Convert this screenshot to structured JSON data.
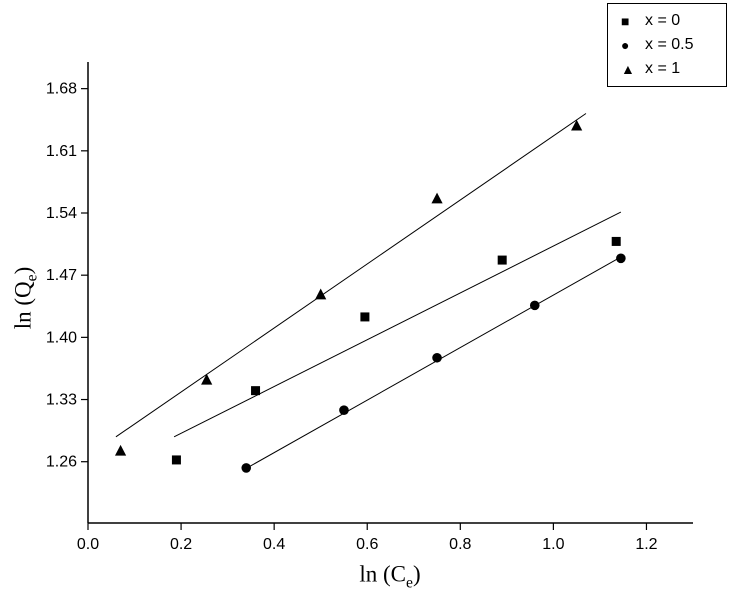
{
  "chart_data": {
    "type": "scatter",
    "title": "",
    "xlabel": {
      "pre": "ln (C",
      "sub": "e",
      "post": ")"
    },
    "ylabel": {
      "pre": "ln (Q",
      "sub": "e",
      "post": ")"
    },
    "xlim": [
      0.0,
      1.3
    ],
    "ylim": [
      1.191,
      1.71
    ],
    "xticks": [
      0.0,
      0.2,
      0.4,
      0.6,
      0.8,
      1.0,
      1.2
    ],
    "xtick_labels": [
      "0.0",
      "0.2",
      "0.4",
      "0.6",
      "0.8",
      "1.0",
      "1.2"
    ],
    "yticks": [
      1.26,
      1.33,
      1.4,
      1.47,
      1.54,
      1.61,
      1.68
    ],
    "ytick_labels": [
      "1.26",
      "1.33",
      "1.40",
      "1.47",
      "1.54",
      "1.61",
      "1.68"
    ],
    "grid": false,
    "legend_position": "top-right",
    "colors": {
      "axis": "#000000",
      "marker": "#000000",
      "fit_line": "#000000",
      "background": "#ffffff"
    },
    "series": [
      {
        "name": "x = 0",
        "marker": "square",
        "points": [
          [
            0.19,
            1.262
          ],
          [
            0.36,
            1.34
          ],
          [
            0.595,
            1.423
          ],
          [
            0.89,
            1.487
          ],
          [
            1.135,
            1.508
          ]
        ],
        "fit_line": {
          "x": [
            0.185,
            1.145
          ],
          "y": [
            1.288,
            1.541
          ]
        }
      },
      {
        "name": "x = 0.5",
        "marker": "circle",
        "points": [
          [
            0.34,
            1.253
          ],
          [
            0.55,
            1.318
          ],
          [
            0.75,
            1.377
          ],
          [
            0.96,
            1.436
          ],
          [
            1.145,
            1.489
          ]
        ],
        "fit_line": {
          "x": [
            0.335,
            1.15
          ],
          "y": [
            1.251,
            1.492
          ]
        }
      },
      {
        "name": "x = 1",
        "marker": "triangle",
        "points": [
          [
            0.07,
            1.272
          ],
          [
            0.255,
            1.352
          ],
          [
            0.5,
            1.448
          ],
          [
            0.75,
            1.556
          ],
          [
            1.05,
            1.638
          ]
        ],
        "fit_line": {
          "x": [
            0.06,
            1.07
          ],
          "y": [
            1.288,
            1.652
          ]
        }
      }
    ],
    "legend": {
      "entries": [
        {
          "glyph": "■",
          "label": "x = 0"
        },
        {
          "glyph": "●",
          "label": "x = 0.5"
        },
        {
          "glyph": "▲",
          "label": "x = 1"
        }
      ]
    }
  }
}
